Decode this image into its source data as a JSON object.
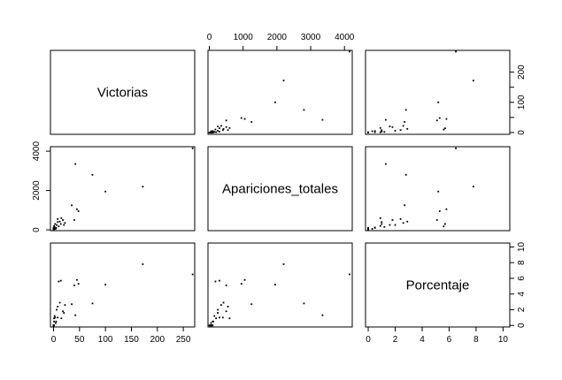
{
  "chart_data": {
    "type": "scatter",
    "variables": [
      {
        "name": "Victorias",
        "ticks": [
          0,
          50,
          100,
          150,
          200,
          250
        ],
        "lim": [
          -6,
          272
        ]
      },
      {
        "name": "Apariciones_totales",
        "ticks": [
          0,
          1000,
          2000,
          3000,
          4000
        ],
        "lim": [
          -40,
          4230
        ]
      },
      {
        "name": "Porcentaje",
        "ticks": [
          0,
          2,
          4,
          6,
          8,
          10
        ],
        "lim": [
          -0.2,
          10.5
        ]
      }
    ],
    "points": [
      [
        0,
        0,
        0.0
      ],
      [
        0,
        10,
        0.0
      ],
      [
        0,
        20,
        0.0
      ],
      [
        0,
        30,
        0.0
      ],
      [
        0,
        50,
        0.0
      ],
      [
        0,
        60,
        0.0
      ],
      [
        0,
        80,
        0.0
      ],
      [
        0,
        90,
        0.0
      ],
      [
        0,
        100,
        0.0
      ],
      [
        1,
        40,
        0.0
      ],
      [
        1,
        120,
        0.5
      ],
      [
        1,
        200,
        0.9
      ],
      [
        2,
        150,
        1.2
      ],
      [
        3,
        300,
        1.0
      ],
      [
        4,
        50,
        0.3
      ],
      [
        5,
        100,
        0.5
      ],
      [
        6,
        250,
        2.0
      ],
      [
        8,
        400,
        1.0
      ],
      [
        8,
        550,
        2.4
      ],
      [
        10,
        180,
        5.6
      ],
      [
        12,
        420,
        2.9
      ],
      [
        14,
        300,
        5.7
      ],
      [
        15,
        600,
        0.9
      ],
      [
        18,
        500,
        1.8
      ],
      [
        20,
        250,
        1.6
      ],
      [
        22,
        350,
        2.6
      ],
      [
        35,
        1250,
        2.7
      ],
      [
        40,
        500,
        5.1
      ],
      [
        42,
        3350,
        1.3
      ],
      [
        45,
        1050,
        5.8
      ],
      [
        48,
        950,
        5.3
      ],
      [
        75,
        2800,
        2.8
      ],
      [
        100,
        1950,
        5.2
      ],
      [
        172,
        2200,
        7.8
      ],
      [
        268,
        4150,
        6.5
      ]
    ],
    "axes": {
      "top": {
        "var": 1
      },
      "right": {
        "var": 2
      },
      "left": {
        "var": 1
      },
      "bottom": {
        "var": 0
      }
    },
    "grid": false
  }
}
